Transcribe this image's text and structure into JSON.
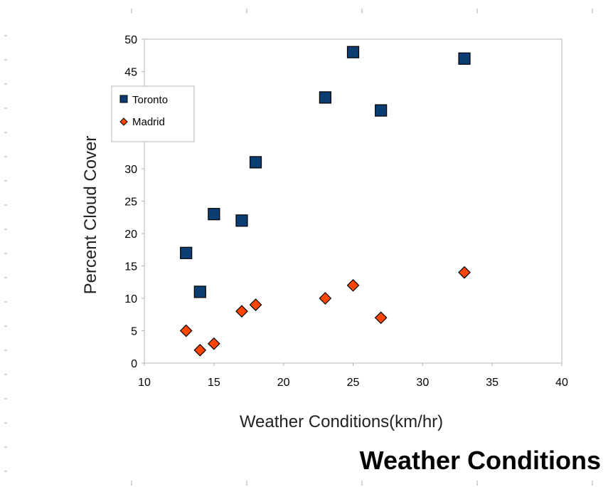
{
  "chart_data": {
    "type": "scatter",
    "title": "Weather Conditions",
    "xlabel": "Weather Conditions(km/hr)",
    "ylabel": "Percent Cloud Cover",
    "xlim": [
      10,
      40
    ],
    "ylim": [
      0,
      50
    ],
    "xticks": [
      10,
      15,
      20,
      25,
      30,
      35,
      40
    ],
    "yticks": [
      0,
      5,
      10,
      15,
      20,
      25,
      30,
      35,
      40,
      45,
      50
    ],
    "grid": false,
    "legend_position": "top-left",
    "series": [
      {
        "name": "Toronto",
        "marker": "square",
        "color": "#0b3d73",
        "points": [
          {
            "x": 13,
            "y": 17
          },
          {
            "x": 14,
            "y": 11
          },
          {
            "x": 15,
            "y": 23
          },
          {
            "x": 17,
            "y": 22
          },
          {
            "x": 18,
            "y": 31
          },
          {
            "x": 23,
            "y": 41
          },
          {
            "x": 25,
            "y": 48
          },
          {
            "x": 27,
            "y": 39
          },
          {
            "x": 33,
            "y": 47
          }
        ]
      },
      {
        "name": "Madrid",
        "marker": "diamond",
        "color": "#ff4500",
        "points": [
          {
            "x": 13,
            "y": 5
          },
          {
            "x": 14,
            "y": 2
          },
          {
            "x": 15,
            "y": 3
          },
          {
            "x": 17,
            "y": 8
          },
          {
            "x": 18,
            "y": 9
          },
          {
            "x": 23,
            "y": 10
          },
          {
            "x": 25,
            "y": 12
          },
          {
            "x": 27,
            "y": 7
          },
          {
            "x": 33,
            "y": 14
          }
        ]
      }
    ]
  }
}
